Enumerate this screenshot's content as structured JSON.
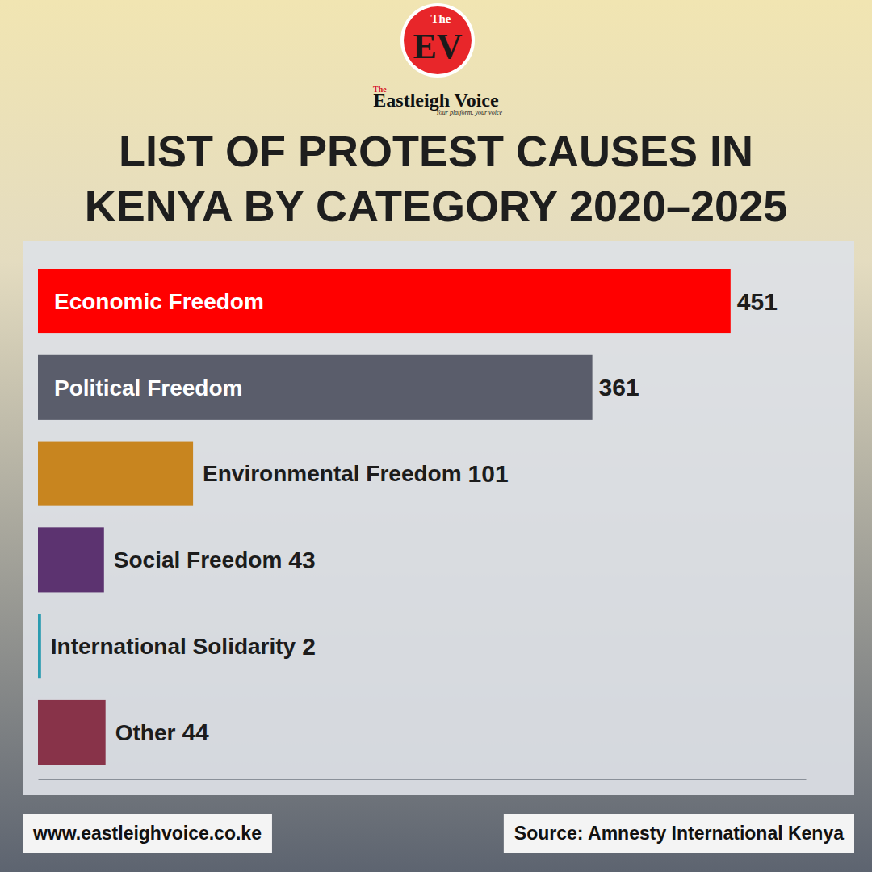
{
  "chart_data": {
    "type": "bar",
    "orientation": "horizontal",
    "title": "LIST OF PROTEST CAUSES IN KENYA BY CATEGORY 2020–2025",
    "categories": [
      "Economic Freedom",
      "Political Freedom",
      "Environmental Freedom",
      "Social Freedom",
      "International Solidarity",
      "Other"
    ],
    "values": [
      451,
      361,
      101,
      43,
      2,
      44
    ],
    "colors": [
      "#ff0000",
      "#5a5d6b",
      "#c8851f",
      "#5c3370",
      "#2a9bb0",
      "#883349"
    ],
    "xlim": [
      0,
      500
    ],
    "data_labels": true,
    "tick_labels": false,
    "logo": {
      "badge_top": "The",
      "badge": "EV",
      "name_prefix": "The",
      "name": "Eastleigh Voice",
      "tagline": "Your platform, your voice"
    },
    "website": "www.eastleighvoice.co.ke",
    "source": "Source: Amnesty International Kenya"
  }
}
